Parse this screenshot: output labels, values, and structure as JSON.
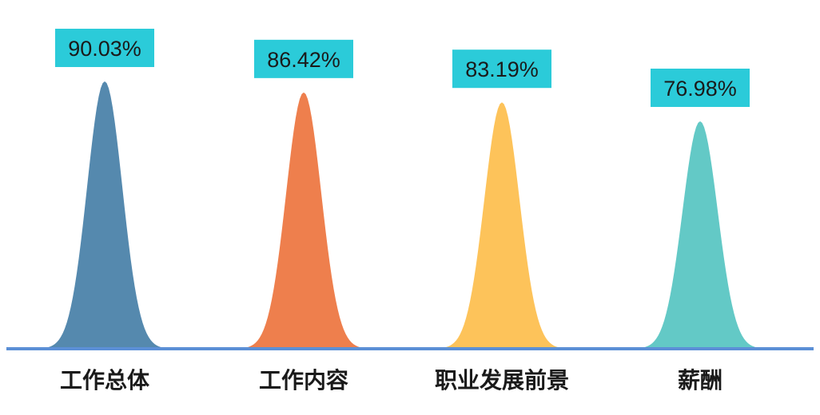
{
  "chart_data": {
    "type": "area",
    "categories": [
      "工作总体",
      "工作内容",
      "职业发展前景",
      "薪酬"
    ],
    "values": [
      90.03,
      86.42,
      83.19,
      76.98
    ],
    "data_labels": [
      "90.03%",
      "86.42%",
      "83.19%",
      "76.98%"
    ],
    "colors": [
      "#5589AE",
      "#EE7F4D",
      "#FDC35A",
      "#63C9C6"
    ],
    "label_box_color": "#2BCBD9",
    "axis_color": "#5B8FD6",
    "title": "",
    "xlabel": "",
    "ylabel": "",
    "ylim": [
      0,
      100
    ],
    "grid": false,
    "legend": "none"
  }
}
